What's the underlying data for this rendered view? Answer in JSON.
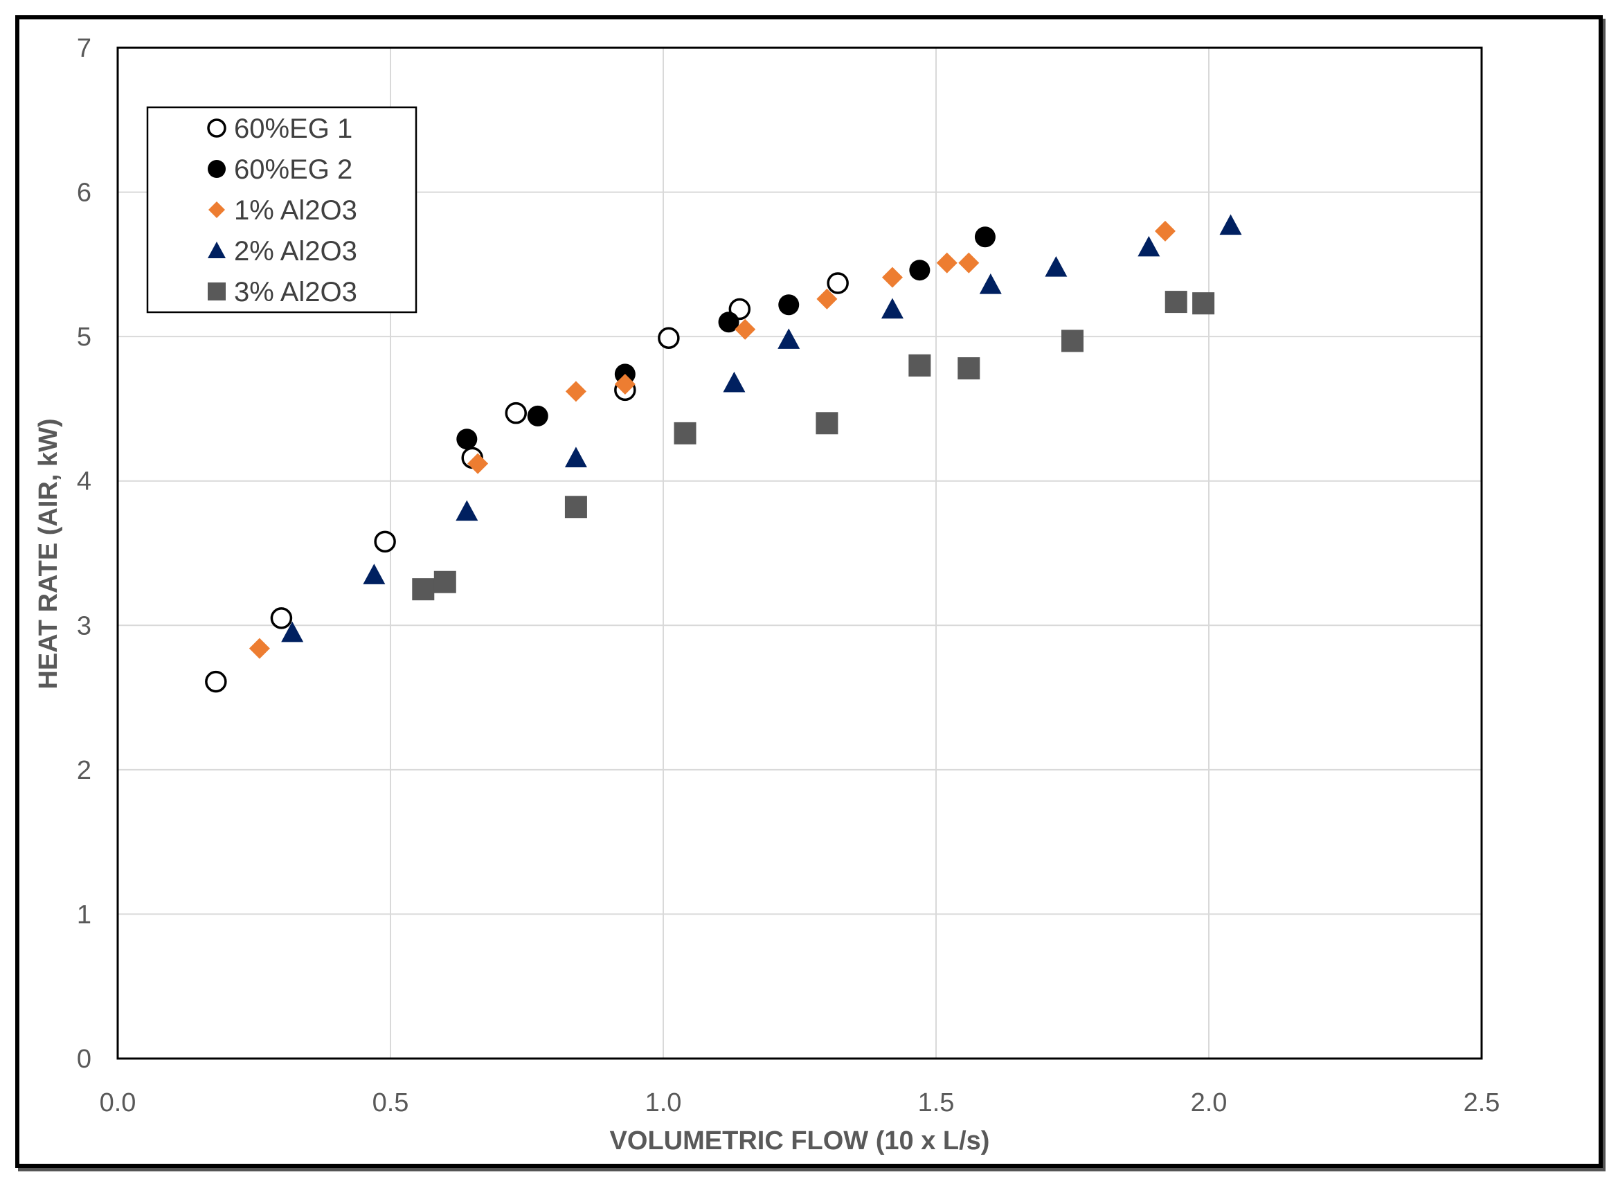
{
  "chart_data": {
    "type": "scatter",
    "xlabel": "VOLUMETRIC FLOW (10 x L/s)",
    "ylabel": "HEAT RATE (AIR, kW)",
    "xlim": [
      0.0,
      2.5
    ],
    "ylim": [
      0,
      7
    ],
    "xticks": [
      "0.0",
      "0.5",
      "1.0",
      "1.5",
      "2.0",
      "2.5"
    ],
    "yticks": [
      "0",
      "1",
      "2",
      "3",
      "4",
      "5",
      "6",
      "7"
    ],
    "grid": true,
    "legend_position": "top-left",
    "series": [
      {
        "name": "60%EG 1",
        "marker": "circle-open",
        "color": "#000000",
        "points": [
          [
            0.18,
            2.61
          ],
          [
            0.3,
            3.05
          ],
          [
            0.49,
            3.58
          ],
          [
            0.65,
            4.16
          ],
          [
            0.73,
            4.47
          ],
          [
            0.93,
            4.63
          ],
          [
            1.01,
            4.99
          ],
          [
            1.14,
            5.19
          ],
          [
            1.32,
            5.37
          ]
        ]
      },
      {
        "name": "60%EG 2",
        "marker": "circle-filled",
        "color": "#000000",
        "points": [
          [
            0.64,
            4.29
          ],
          [
            0.77,
            4.45
          ],
          [
            0.93,
            4.74
          ],
          [
            1.12,
            5.1
          ],
          [
            1.23,
            5.22
          ],
          [
            1.47,
            5.46
          ],
          [
            1.59,
            5.69
          ]
        ]
      },
      {
        "name": "1% Al2O3",
        "marker": "diamond",
        "color": "#ED7D31",
        "points": [
          [
            0.26,
            2.84
          ],
          [
            0.66,
            4.12
          ],
          [
            0.84,
            4.62
          ],
          [
            0.93,
            4.67
          ],
          [
            1.15,
            5.05
          ],
          [
            1.3,
            5.26
          ],
          [
            1.42,
            5.41
          ],
          [
            1.52,
            5.51
          ],
          [
            1.56,
            5.51
          ],
          [
            1.92,
            5.73
          ]
        ]
      },
      {
        "name": "2% Al2O3",
        "marker": "triangle",
        "color": "#002060",
        "points": [
          [
            0.32,
            2.95
          ],
          [
            0.47,
            3.35
          ],
          [
            0.64,
            3.79
          ],
          [
            0.84,
            4.16
          ],
          [
            1.13,
            4.68
          ],
          [
            1.23,
            4.98
          ],
          [
            1.42,
            5.19
          ],
          [
            1.6,
            5.36
          ],
          [
            1.72,
            5.48
          ],
          [
            1.89,
            5.62
          ],
          [
            2.04,
            5.77
          ]
        ]
      },
      {
        "name": "3% Al2O3",
        "marker": "square",
        "color": "#595959",
        "points": [
          [
            0.56,
            3.25
          ],
          [
            0.6,
            3.3
          ],
          [
            0.84,
            3.82
          ],
          [
            1.04,
            4.33
          ],
          [
            1.3,
            4.4
          ],
          [
            1.47,
            4.8
          ],
          [
            1.56,
            4.78
          ],
          [
            1.75,
            4.97
          ],
          [
            1.94,
            5.24
          ],
          [
            1.99,
            5.23
          ]
        ]
      }
    ]
  }
}
